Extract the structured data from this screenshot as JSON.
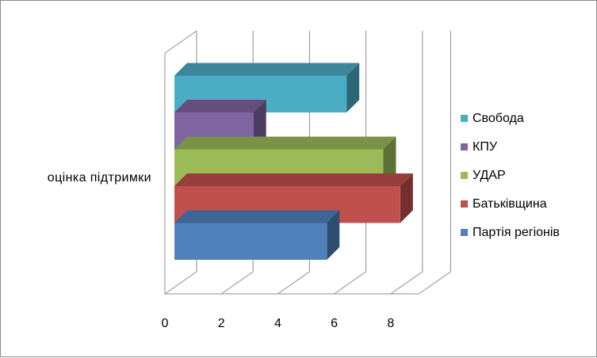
{
  "chart_data": {
    "type": "bar",
    "orientation": "horizontal",
    "style": "3d",
    "categories": [
      "оцінка  підтримки"
    ],
    "series": [
      {
        "name": "Партія  регіонів",
        "values": [
          5.4
        ],
        "color": "#4f81bd"
      },
      {
        "name": "Батьківщина",
        "values": [
          8.0
        ],
        "color": "#c0504d"
      },
      {
        "name": "УДАР",
        "values": [
          7.4
        ],
        "color": "#9bbb59"
      },
      {
        "name": "КПУ",
        "values": [
          2.8
        ],
        "color": "#8064a2"
      },
      {
        "name": "Свобода",
        "values": [
          6.1
        ],
        "color": "#4bacc6"
      }
    ],
    "x_ticks": [
      "0",
      "2",
      "4",
      "6",
      "8"
    ],
    "xlim": [
      0,
      9
    ],
    "grid": true,
    "legend_position": "right",
    "title": "",
    "xlabel": "",
    "ylabel": ""
  }
}
